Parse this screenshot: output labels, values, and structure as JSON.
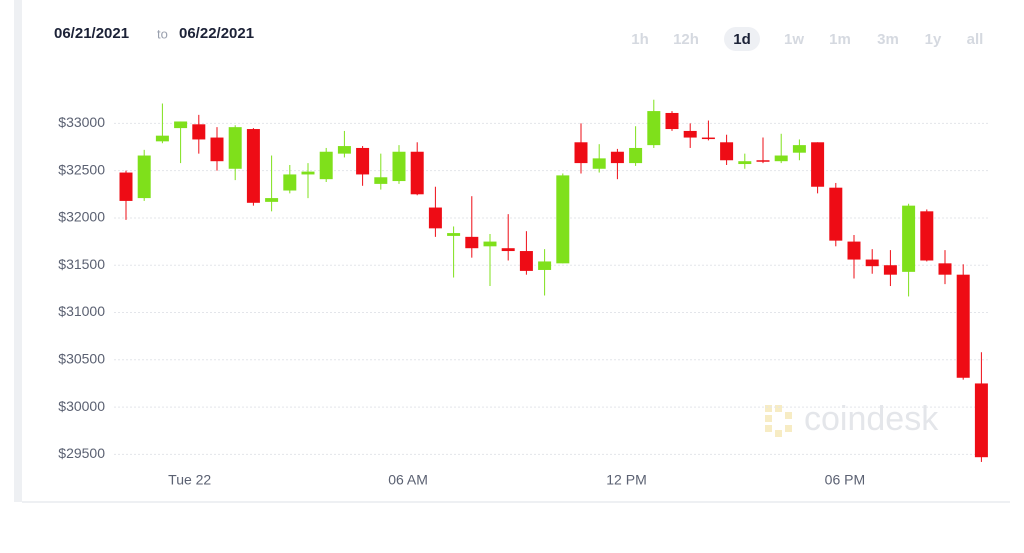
{
  "header": {
    "start_date": "06/21/2021",
    "separator": "to",
    "end_date": "06/22/2021"
  },
  "range_buttons": {
    "items": [
      "1h",
      "12h",
      "1d",
      "1w",
      "1m",
      "3m",
      "1y",
      "all"
    ],
    "selected": 2
  },
  "watermark": "coindesk",
  "chart_data": {
    "type": "candlestick",
    "categories": [
      null,
      null,
      null,
      null,
      "Tue 22",
      null,
      null,
      null,
      null,
      null,
      null,
      null,
      null,
      null,
      null,
      null,
      "06 AM",
      null,
      null,
      null,
      null,
      null,
      null,
      null,
      null,
      null,
      null,
      null,
      "12 PM",
      null,
      null,
      null,
      null,
      null,
      null,
      null,
      null,
      null,
      null,
      null,
      "06 PM",
      null,
      null,
      null,
      null,
      null,
      null,
      null
    ],
    "open": [
      32480,
      32210,
      32810,
      32950,
      32990,
      32850,
      32520,
      32940,
      32170,
      32290,
      32460,
      32410,
      32680,
      32740,
      32360,
      32390,
      32700,
      32110,
      31810,
      31800,
      31700,
      31680,
      31650,
      31450,
      31520,
      32800,
      32520,
      32700,
      32580,
      32770,
      33110,
      32920,
      32850,
      32800,
      32570,
      32610,
      32600,
      32690,
      32800,
      32320,
      31750,
      31560,
      31500,
      31430,
      32070,
      31520,
      31400,
      30250
    ],
    "high": [
      32500,
      32720,
      33210,
      33020,
      33090,
      32960,
      32980,
      32950,
      32660,
      32560,
      32580,
      32740,
      32920,
      32760,
      32680,
      32770,
      32800,
      32330,
      31910,
      32230,
      31830,
      32040,
      31860,
      31670,
      32470,
      33000,
      32780,
      32730,
      32970,
      33250,
      33130,
      33000,
      33030,
      32880,
      32680,
      32850,
      32890,
      32830,
      32800,
      32370,
      31820,
      31670,
      31660,
      32150,
      32090,
      31660,
      31510,
      30580
    ],
    "low": [
      31980,
      32180,
      32790,
      32580,
      32680,
      32500,
      32400,
      32130,
      32070,
      32260,
      32210,
      32380,
      32640,
      32340,
      32300,
      32360,
      32240,
      31800,
      31370,
      31580,
      31280,
      31550,
      31400,
      31180,
      31520,
      32470,
      32480,
      32410,
      32550,
      32740,
      32920,
      32740,
      32820,
      32560,
      32520,
      32580,
      32580,
      32610,
      32260,
      31700,
      31360,
      31410,
      31280,
      31170,
      31540,
      31300,
      30290,
      29420
    ],
    "close": [
      32180,
      32660,
      32870,
      33020,
      32830,
      32600,
      32960,
      32160,
      32210,
      32460,
      32490,
      32700,
      32760,
      32460,
      32430,
      32700,
      32250,
      31890,
      31840,
      31680,
      31750,
      31650,
      31440,
      31540,
      32450,
      32580,
      32630,
      32580,
      32740,
      33130,
      32940,
      32850,
      32840,
      32610,
      32600,
      32600,
      32660,
      32770,
      32330,
      31760,
      31560,
      31490,
      31400,
      32130,
      31550,
      31400,
      30310,
      29470
    ],
    "up_color": "#7fe01b",
    "down_color": "#ee0c15",
    "ylim": [
      29350,
      33300
    ],
    "yticks": [
      {
        "value": 29500,
        "label": "$29500"
      },
      {
        "value": 30000,
        "label": "$30000"
      },
      {
        "value": 30500,
        "label": "$30500"
      },
      {
        "value": 31000,
        "label": "$31000"
      },
      {
        "value": 31500,
        "label": "$31500"
      },
      {
        "value": 32000,
        "label": "$32000"
      },
      {
        "value": 32500,
        "label": "$32500"
      },
      {
        "value": 33000,
        "label": "$33000"
      }
    ],
    "grid": true
  }
}
